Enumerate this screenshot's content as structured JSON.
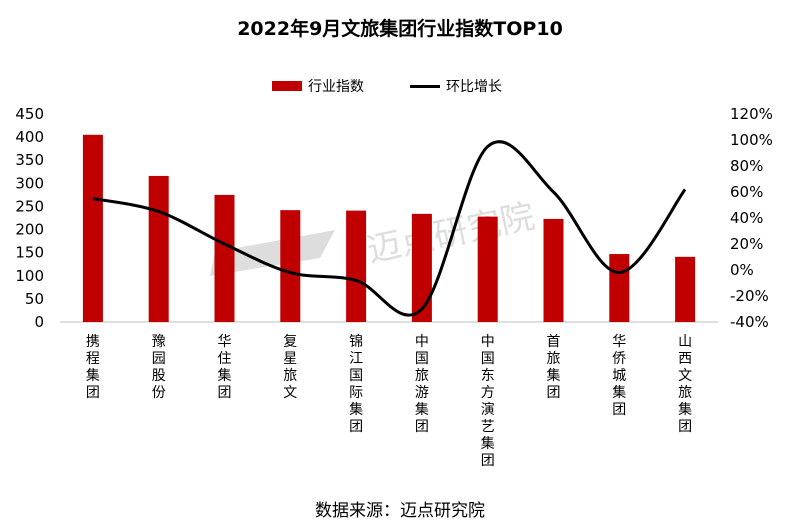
{
  "chart_data": {
    "type": "bar",
    "title": "2022年9月文旅集团行业指数TOP10",
    "categories": [
      "携程集团",
      "豫园股份",
      "华住集团",
      "复星旅文",
      "锦江国际集团",
      "中国旅游集团",
      "中国东方演艺集团",
      "首旅集团",
      "华侨城集团",
      "山西文旅集团"
    ],
    "series": [
      {
        "name": "行业指数",
        "type": "bar",
        "axis": "left",
        "color": "#C00000",
        "values": [
          405,
          316,
          275,
          242,
          241,
          234,
          228,
          223,
          147,
          141
        ]
      },
      {
        "name": "环比增长",
        "type": "line",
        "axis": "right",
        "color": "#000000",
        "values": [
          0.55,
          0.45,
          0.2,
          -0.02,
          -0.08,
          -0.3,
          0.95,
          0.6,
          -0.02,
          0.62
        ]
      }
    ],
    "ylim_left": [
      0,
      450
    ],
    "yticks_left": [
      "0",
      "50",
      "100",
      "150",
      "200",
      "250",
      "300",
      "350",
      "400",
      "450"
    ],
    "ylim_right": [
      -0.4,
      1.2
    ],
    "yticks_right": [
      "-40%",
      "-20%",
      "0%",
      "20%",
      "40%",
      "60%",
      "80%",
      "100%",
      "120%"
    ],
    "legend_position": "top-center",
    "grid": false
  },
  "source_text": "数据来源：迈点研究院",
  "watermark": "迈点研究院"
}
